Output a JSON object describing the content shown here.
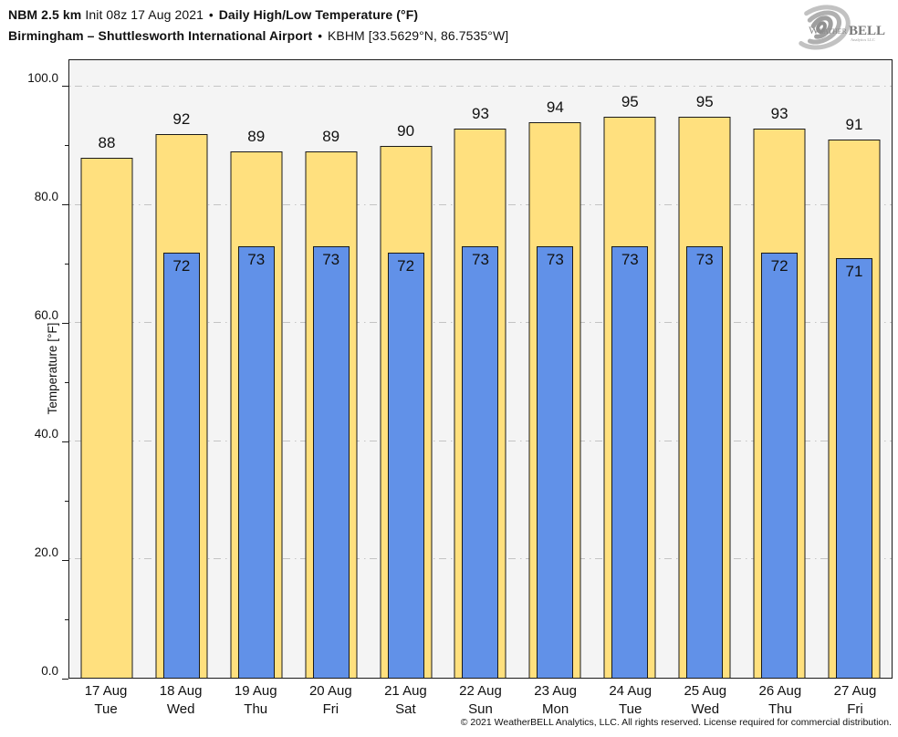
{
  "header": {
    "title_model": "NBM 2.5 km",
    "title_init": "Init 08z 17 Aug 2021",
    "separator": "•",
    "title_product": "Daily High/Low Temperature (°F)",
    "subtitle_station": "Birmingham – Shuttlesworth International Airport",
    "subtitle_id": "KBHM [33.5629°N, 86.7535°W]",
    "logo": {
      "name": "WeatherBELL",
      "text_weather": "Weather",
      "text_bell": "BELL",
      "text_sub": "Analytics LLC"
    }
  },
  "chart_data": {
    "type": "bar",
    "title": "NBM 2.5 km Init 08z 17 Aug 2021 • Daily High/Low Temperature (°F) — Birmingham – Shuttlesworth International Airport • KBHM [33.5629°N, 86.7535°W]",
    "xlabel": "",
    "ylabel": "Temperature [°F]",
    "ylim": [
      0,
      104.5
    ],
    "yticks_major": [
      0,
      20,
      40,
      60,
      80,
      100
    ],
    "ytick_labels": [
      "0.0",
      "20.0",
      "40.0",
      "60.0",
      "80.0",
      "100.0"
    ],
    "yticks_minor": [
      10,
      30,
      50,
      70,
      90
    ],
    "grid": "horizontal dash-dot gridlines at major ticks",
    "legend_position": "none",
    "categories": [
      "17 Aug",
      "18 Aug",
      "19 Aug",
      "20 Aug",
      "21 Aug",
      "22 Aug",
      "23 Aug",
      "24 Aug",
      "25 Aug",
      "26 Aug",
      "27 Aug"
    ],
    "weekdays": [
      "Tue",
      "Wed",
      "Thu",
      "Fri",
      "Sat",
      "Sun",
      "Mon",
      "Tue",
      "Wed",
      "Thu",
      "Fri"
    ],
    "series": [
      {
        "name": "Daily High",
        "color": "#ffe07e",
        "values": [
          88,
          92,
          89,
          89,
          90,
          93,
          94,
          95,
          95,
          93,
          91
        ]
      },
      {
        "name": "Daily Low",
        "color": "#6191e8",
        "values": [
          null,
          72,
          73,
          73,
          72,
          73,
          73,
          73,
          73,
          72,
          71
        ]
      }
    ]
  },
  "colors": {
    "high_bar": "#ffe07e",
    "low_bar": "#6191e8",
    "plot_background": "#f4f4f4",
    "bar_outline": "#1a1a1a",
    "gridline": "#c4c4c4"
  },
  "footer": {
    "copyright": "© 2021 WeatherBELL Analytics, LLC. All rights reserved. License required for commercial distribution."
  }
}
